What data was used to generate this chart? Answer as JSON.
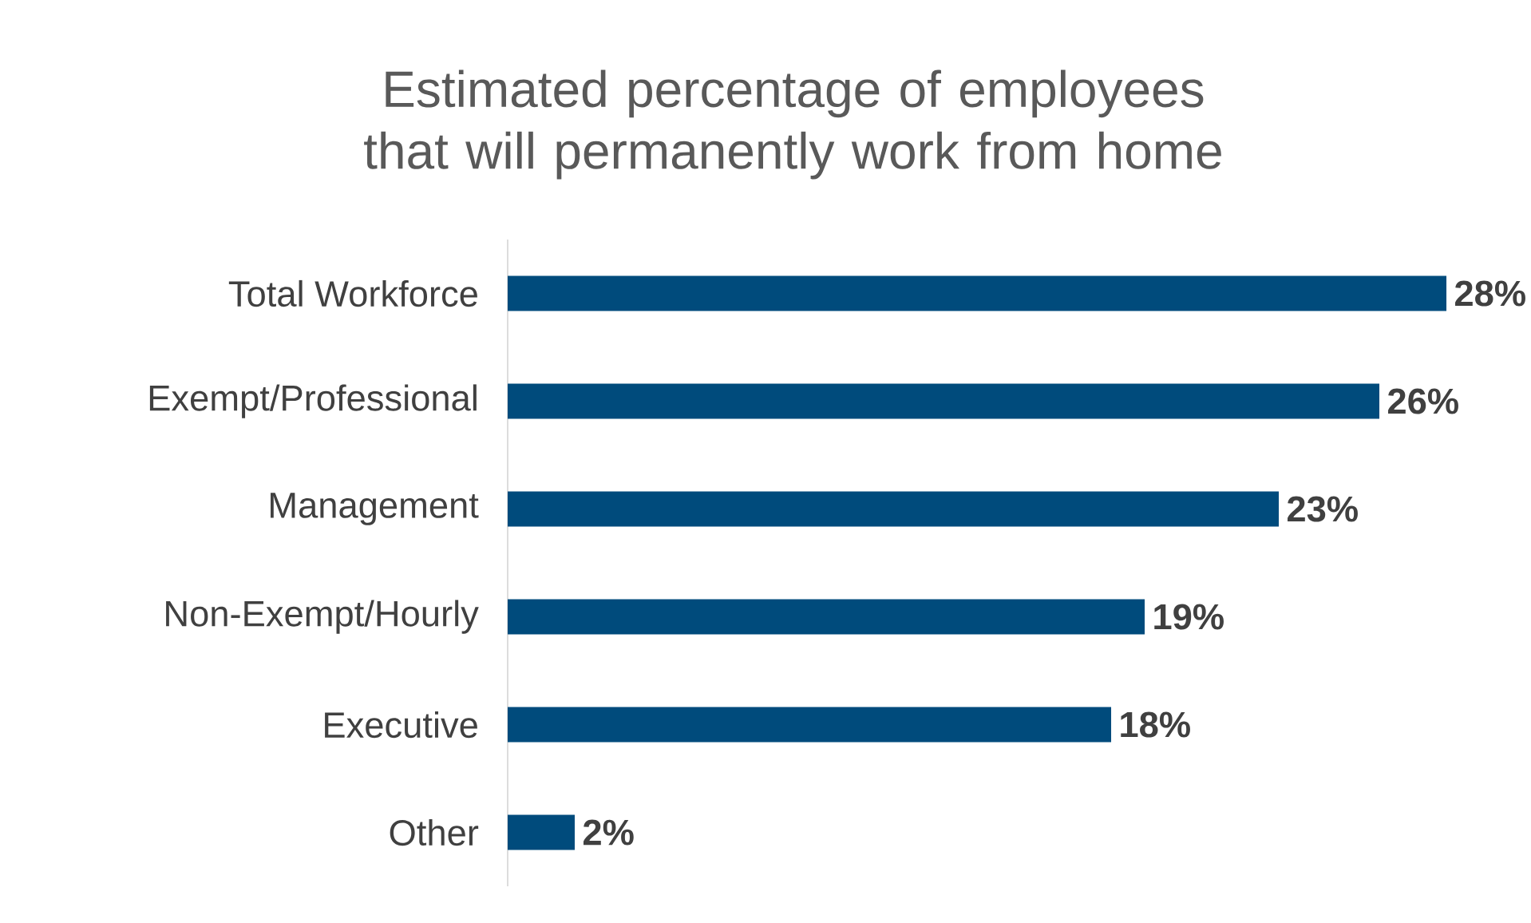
{
  "chart_data": {
    "type": "bar",
    "orientation": "horizontal",
    "title": "Estimated percentage of employees that will permanently work from home",
    "categories": [
      "Total Workforce",
      "Exempt/Professional",
      "Management",
      "Non-Exempt/Hourly",
      "Executive",
      "Other"
    ],
    "values": [
      28,
      26,
      23,
      19,
      18,
      2
    ],
    "value_labels": [
      "28%",
      "26%",
      "23%",
      "19%",
      "18%",
      "2%"
    ],
    "color": "#004b7c",
    "xlim": [
      0,
      28
    ]
  }
}
